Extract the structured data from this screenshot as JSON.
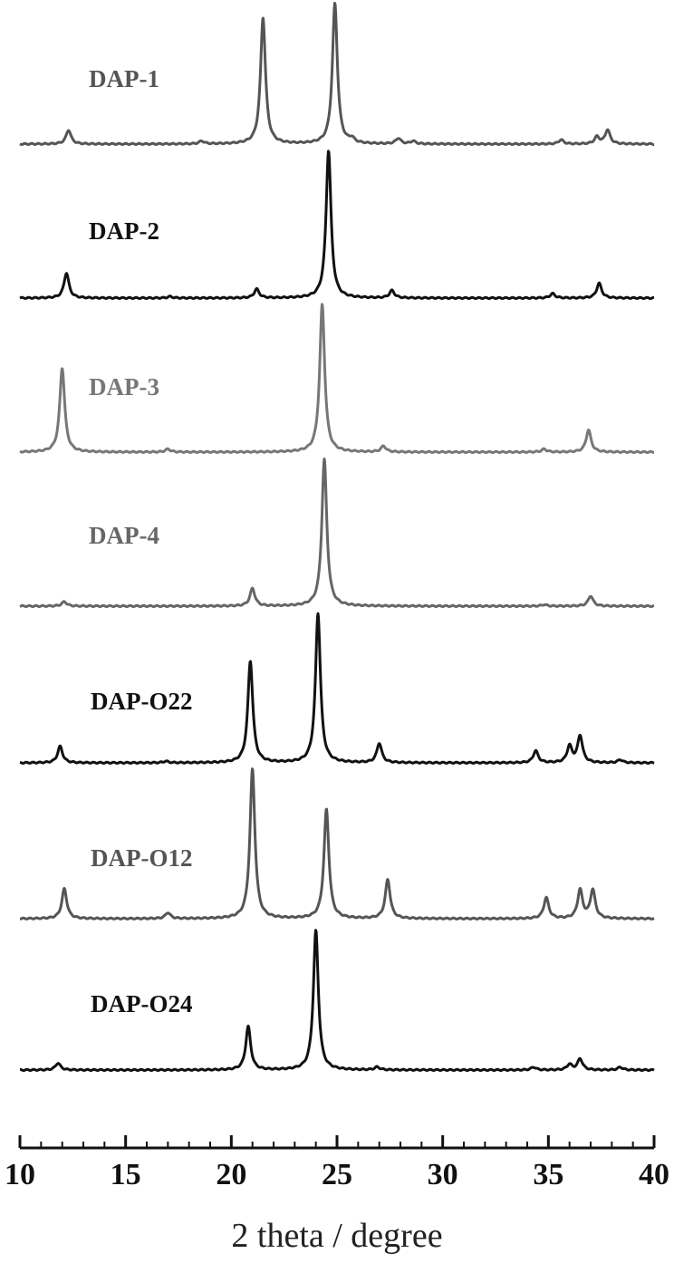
{
  "chart_data": {
    "type": "line",
    "title": "",
    "xlabel": "2 theta / degree",
    "ylabel": "",
    "xlim": [
      10,
      40
    ],
    "x_ticks": [
      10,
      15,
      20,
      25,
      30,
      35,
      40
    ],
    "x_tick_labels": [
      "10",
      "15",
      "20",
      "25",
      "30",
      "35",
      "40"
    ],
    "y_axis_shown": false,
    "grid": false,
    "legend": "labels placed above each trace",
    "series": [
      {
        "name": "DAP-1",
        "color": "#555555",
        "peaks": [
          {
            "two_theta": 12.3,
            "relative_intensity": 0.1
          },
          {
            "two_theta": 18.6,
            "relative_intensity": 0.02
          },
          {
            "two_theta": 21.5,
            "relative_intensity": 0.9
          },
          {
            "two_theta": 24.9,
            "relative_intensity": 1.0
          },
          {
            "two_theta": 25.7,
            "relative_intensity": 0.03
          },
          {
            "two_theta": 27.9,
            "relative_intensity": 0.04
          },
          {
            "two_theta": 28.6,
            "relative_intensity": 0.02
          },
          {
            "two_theta": 35.6,
            "relative_intensity": 0.03
          },
          {
            "two_theta": 37.3,
            "relative_intensity": 0.05
          },
          {
            "two_theta": 37.8,
            "relative_intensity": 0.1
          }
        ]
      },
      {
        "name": "DAP-2",
        "color": "#111111",
        "peaks": [
          {
            "two_theta": 12.2,
            "relative_intensity": 0.17
          },
          {
            "two_theta": 17.1,
            "relative_intensity": 0.01
          },
          {
            "two_theta": 21.2,
            "relative_intensity": 0.06
          },
          {
            "two_theta": 24.6,
            "relative_intensity": 1.0
          },
          {
            "two_theta": 27.6,
            "relative_intensity": 0.05
          },
          {
            "two_theta": 35.2,
            "relative_intensity": 0.03
          },
          {
            "two_theta": 37.4,
            "relative_intensity": 0.1
          }
        ]
      },
      {
        "name": "DAP-3",
        "color": "#777777",
        "peaks": [
          {
            "two_theta": 12.0,
            "relative_intensity": 0.57
          },
          {
            "two_theta": 17.0,
            "relative_intensity": 0.02
          },
          {
            "two_theta": 24.3,
            "relative_intensity": 1.0
          },
          {
            "two_theta": 27.2,
            "relative_intensity": 0.04
          },
          {
            "two_theta": 34.8,
            "relative_intensity": 0.02
          },
          {
            "two_theta": 36.9,
            "relative_intensity": 0.15
          }
        ]
      },
      {
        "name": "DAP-4",
        "color": "#666666",
        "peaks": [
          {
            "two_theta": 12.1,
            "relative_intensity": 0.03
          },
          {
            "two_theta": 21.0,
            "relative_intensity": 0.12
          },
          {
            "two_theta": 24.4,
            "relative_intensity": 1.0
          },
          {
            "two_theta": 34.8,
            "relative_intensity": 0.01
          },
          {
            "two_theta": 37.0,
            "relative_intensity": 0.07
          }
        ]
      },
      {
        "name": "DAP-O22",
        "color": "#111111",
        "peaks": [
          {
            "two_theta": 11.9,
            "relative_intensity": 0.11
          },
          {
            "two_theta": 16.9,
            "relative_intensity": 0.01
          },
          {
            "two_theta": 20.9,
            "relative_intensity": 0.68
          },
          {
            "two_theta": 24.1,
            "relative_intensity": 1.0
          },
          {
            "two_theta": 27.0,
            "relative_intensity": 0.13
          },
          {
            "two_theta": 34.4,
            "relative_intensity": 0.08
          },
          {
            "two_theta": 36.0,
            "relative_intensity": 0.11
          },
          {
            "two_theta": 36.5,
            "relative_intensity": 0.18
          },
          {
            "two_theta": 38.4,
            "relative_intensity": 0.02
          }
        ]
      },
      {
        "name": "DAP-O12",
        "color": "#555555",
        "peaks": [
          {
            "two_theta": 12.1,
            "relative_intensity": 0.2
          },
          {
            "two_theta": 17.0,
            "relative_intensity": 0.04
          },
          {
            "two_theta": 21.0,
            "relative_intensity": 1.0
          },
          {
            "two_theta": 24.5,
            "relative_intensity": 0.73
          },
          {
            "two_theta": 27.4,
            "relative_intensity": 0.26
          },
          {
            "two_theta": 34.9,
            "relative_intensity": 0.14
          },
          {
            "two_theta": 36.5,
            "relative_intensity": 0.19
          },
          {
            "two_theta": 37.1,
            "relative_intensity": 0.19
          }
        ]
      },
      {
        "name": "DAP-O24",
        "color": "#111111",
        "peaks": [
          {
            "two_theta": 11.8,
            "relative_intensity": 0.05
          },
          {
            "two_theta": 20.8,
            "relative_intensity": 0.31
          },
          {
            "two_theta": 24.0,
            "relative_intensity": 1.0
          },
          {
            "two_theta": 26.9,
            "relative_intensity": 0.02
          },
          {
            "two_theta": 34.3,
            "relative_intensity": 0.02
          },
          {
            "two_theta": 36.0,
            "relative_intensity": 0.04
          },
          {
            "two_theta": 36.5,
            "relative_intensity": 0.08
          },
          {
            "two_theta": 38.4,
            "relative_intensity": 0.02
          }
        ]
      }
    ]
  }
}
